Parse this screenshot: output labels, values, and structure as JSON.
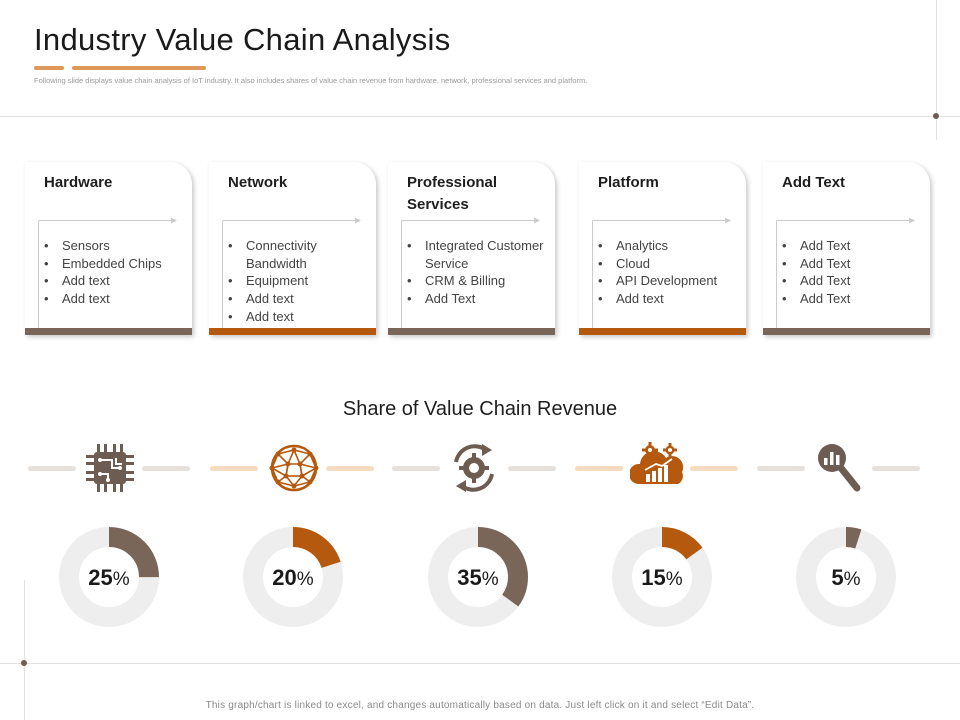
{
  "header": {
    "title": "Industry Value Chain Analysis",
    "subtitle": "Following slide displays value chain analysis of IoT industry. It also includes shares of value chain revenue from hardware, network, professional services and platform."
  },
  "colors": {
    "brown": "#7a6659",
    "orange": "#b5590f",
    "light_orange": "#f5dcc0",
    "light_gray": "#e6e1dd",
    "ring_track": "#eeeeee",
    "accent": "#e0975a"
  },
  "cards": [
    {
      "title": "Hardware",
      "items": [
        "Sensors",
        "Embedded Chips",
        "Add text",
        "Add text"
      ],
      "bar_color": "#7a6659"
    },
    {
      "title": "Network",
      "items": [
        "Connectivity Bandwidth",
        "Equipment",
        "Add text",
        "Add text"
      ],
      "bar_color": "#b5590f"
    },
    {
      "title": "Professional Services",
      "items": [
        "Integrated Customer Service",
        "CRM & Billing",
        "Add Text"
      ],
      "bar_color": "#7a6659"
    },
    {
      "title": "Platform",
      "items": [
        "Analytics",
        "Cloud",
        "API Development",
        "Add text"
      ],
      "bar_color": "#b5590f"
    },
    {
      "title": "Add Text",
      "items": [
        "Add Text",
        "Add Text",
        "Add Text",
        "Add Text"
      ],
      "bar_color": "#7a6659"
    }
  ],
  "icons": [
    "circuit-chip-icon",
    "network-globe-icon",
    "gear-cycle-icon",
    "cloud-analytics-icon",
    "magnifier-chart-icon"
  ],
  "chart_data": {
    "type": "pie",
    "title": "Share of Value Chain Revenue",
    "categories": [
      "Hardware",
      "Network",
      "Professional Services",
      "Platform",
      "Add Text"
    ],
    "values": [
      25,
      20,
      35,
      15,
      5
    ],
    "unit": "%",
    "segment_colors": [
      "#7a6659",
      "#b5590f",
      "#7a6659",
      "#b5590f",
      "#7a6659"
    ]
  },
  "footnote": "This graph/chart is linked to excel, and changes automatically based on data.  Just left click on it and select “Edit Data”."
}
